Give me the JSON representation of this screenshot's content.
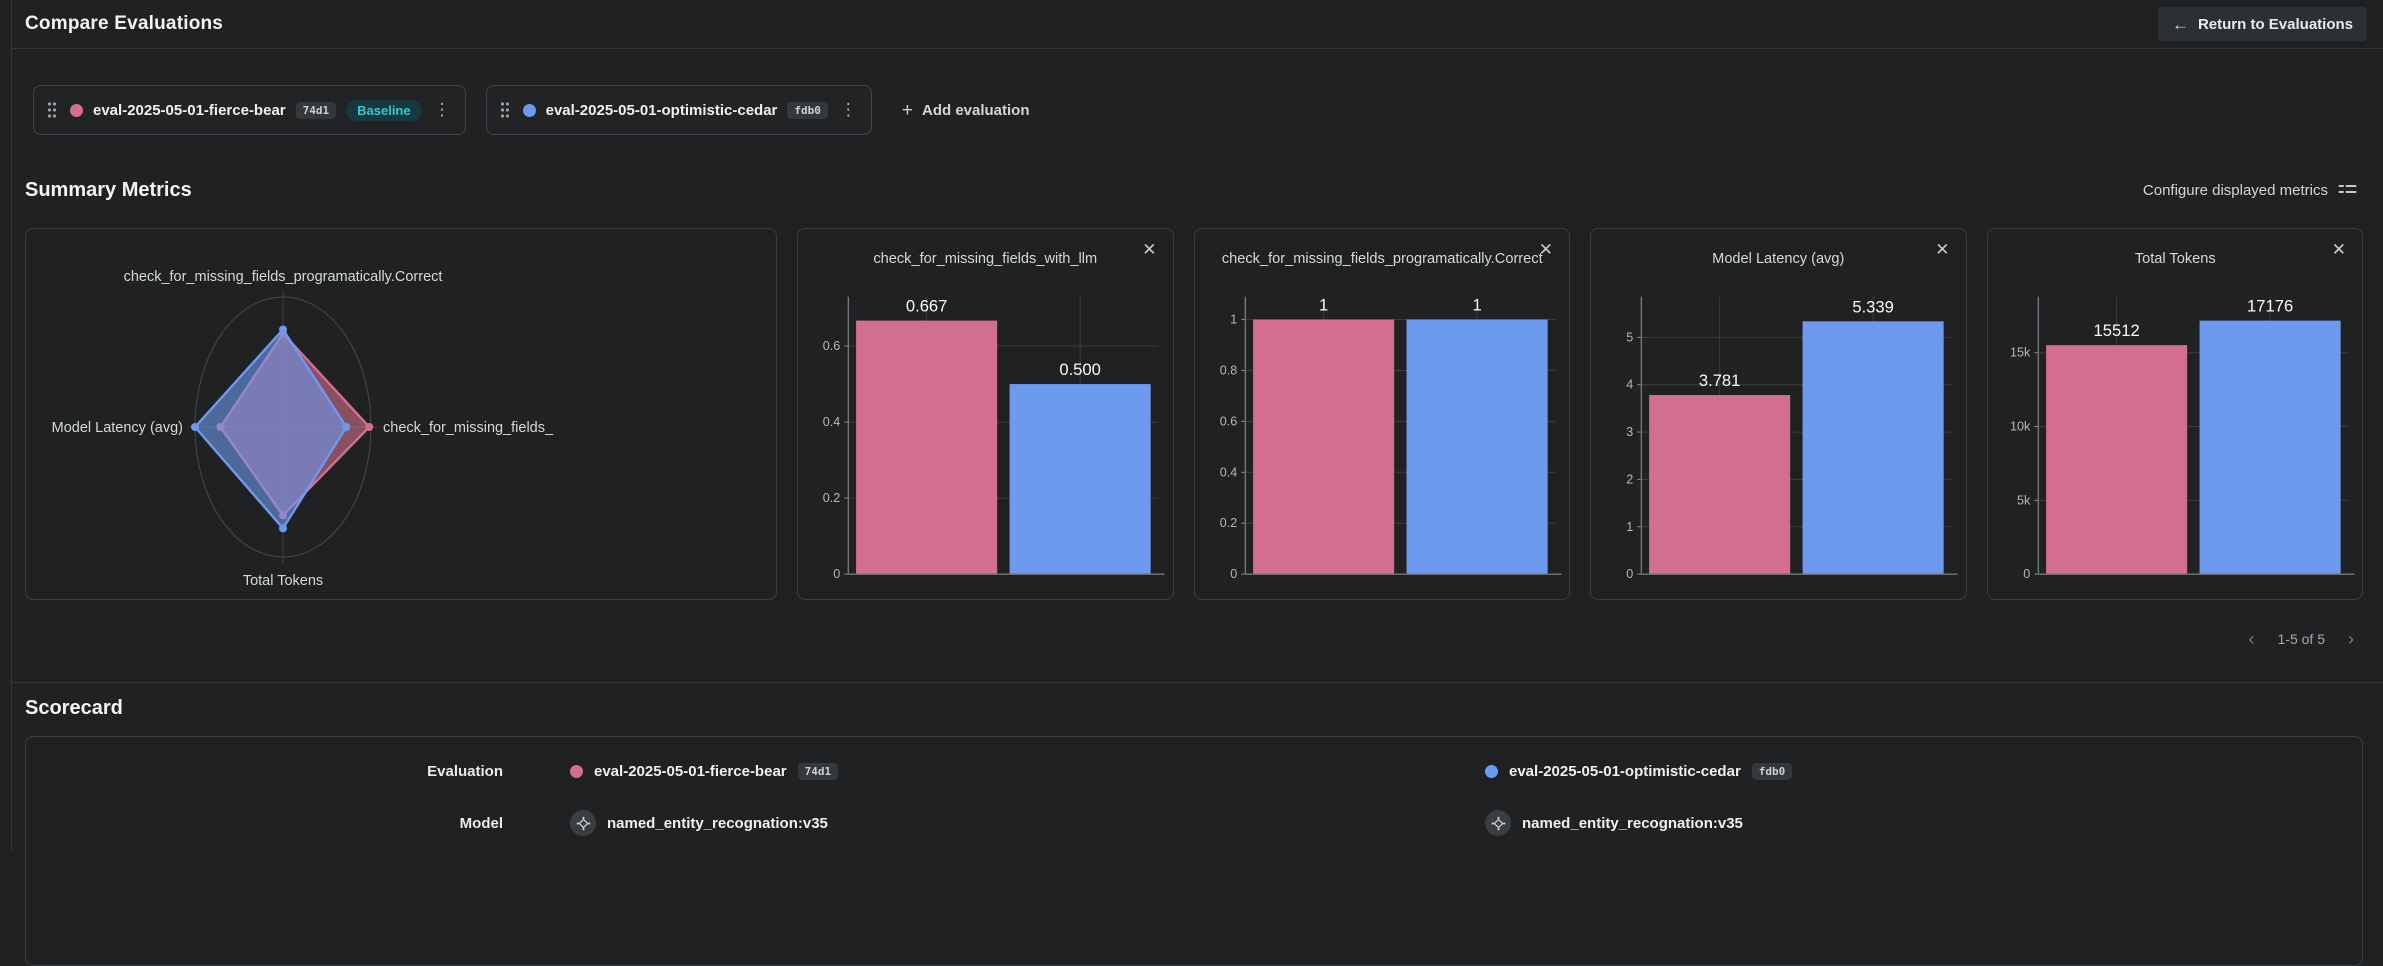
{
  "icons": {
    "close": "✕",
    "plus": "+",
    "back_arrow": "←",
    "kebab": "⋮",
    "chevron_left": "‹",
    "chevron_right": "›"
  },
  "colors": {
    "baseline_series": "#d26e8e",
    "compare_series": "#6d9aee",
    "baseline_badge_bg": "#15393e",
    "baseline_badge_text": "#38c6d0"
  },
  "header": {
    "title": "Compare Evaluations",
    "return_button_label": "Return to Evaluations"
  },
  "toolbar": {
    "evaluations": [
      {
        "name": "eval-2025-05-01-fierce-bear",
        "short_id": "74d1",
        "badge": "Baseline",
        "color": "#d26e8e"
      },
      {
        "name": "eval-2025-05-01-optimistic-cedar",
        "short_id": "fdb0",
        "badge": "",
        "color": "#6d9aee"
      }
    ],
    "add_evaluation_label": "Add evaluation"
  },
  "summary_metrics": {
    "title": "Summary Metrics",
    "configure_label": "Configure displayed metrics",
    "pagination_label": "1-5 of 5"
  },
  "chart_data": [
    {
      "type": "radar",
      "axis_order": "top,right,bottom,left",
      "axes": [
        "check_for_missing_fields_programatically.Correct",
        "check_for_missing_fields_",
        "Total Tokens",
        "Model Latency (avg)"
      ],
      "series": [
        {
          "name": "eval-2025-05-01-fierce-bear",
          "color": "#d26e8e",
          "values_normalized": [
            0.72,
            0.98,
            0.68,
            0.71
          ]
        },
        {
          "name": "eval-2025-05-01-optimistic-cedar",
          "color": "#6d9aee",
          "values_normalized": [
            0.75,
            0.72,
            0.78,
            1.0
          ]
        }
      ]
    },
    {
      "type": "bar",
      "title": "check_for_missing_fields_with_llm",
      "categories": [
        "eval-2025-05-01-fierce-bear",
        "eval-2025-05-01-optimistic-cedar"
      ],
      "values": [
        0.667,
        0.5
      ],
      "value_labels": [
        "0.667",
        "0.500"
      ],
      "yticks": [
        {
          "v": 0,
          "label": "0"
        },
        {
          "v": 0.2,
          "label": "0.2"
        },
        {
          "v": 0.4,
          "label": "0.4"
        },
        {
          "v": 0.6,
          "label": "0.6"
        }
      ],
      "ylim": [
        0,
        0.73
      ]
    },
    {
      "type": "bar",
      "title": "check_for_missing_fields_programatically.Correct",
      "categories": [
        "eval-2025-05-01-fierce-bear",
        "eval-2025-05-01-optimistic-cedar"
      ],
      "values": [
        1,
        1
      ],
      "value_labels": [
        "1",
        "1"
      ],
      "yticks": [
        {
          "v": 0,
          "label": "0"
        },
        {
          "v": 0.2,
          "label": "0.2"
        },
        {
          "v": 0.4,
          "label": "0.4"
        },
        {
          "v": 0.6,
          "label": "0.6"
        },
        {
          "v": 0.8,
          "label": "0.8"
        },
        {
          "v": 1,
          "label": "1"
        }
      ],
      "ylim": [
        0,
        1.09
      ]
    },
    {
      "type": "bar",
      "title": "Model Latency (avg)",
      "categories": [
        "eval-2025-05-01-fierce-bear",
        "eval-2025-05-01-optimistic-cedar"
      ],
      "values": [
        3.781,
        5.339
      ],
      "value_labels": [
        "3.781",
        "5.339"
      ],
      "yticks": [
        {
          "v": 0,
          "label": "0"
        },
        {
          "v": 1,
          "label": "1"
        },
        {
          "v": 2,
          "label": "2"
        },
        {
          "v": 3,
          "label": "3"
        },
        {
          "v": 4,
          "label": "4"
        },
        {
          "v": 5,
          "label": "5"
        }
      ],
      "ylim": [
        0,
        5.86
      ]
    },
    {
      "type": "bar",
      "title": "Total Tokens",
      "categories": [
        "eval-2025-05-01-fierce-bear",
        "eval-2025-05-01-optimistic-cedar"
      ],
      "values": [
        15512,
        17176
      ],
      "value_labels": [
        "15512",
        "17176"
      ],
      "yticks": [
        {
          "v": 0,
          "label": "0"
        },
        {
          "v": 5000,
          "label": "5k"
        },
        {
          "v": 10000,
          "label": "10k"
        },
        {
          "v": 15000,
          "label": "15k"
        }
      ],
      "ylim": [
        0,
        18800
      ]
    }
  ],
  "scorecard": {
    "title": "Scorecard",
    "rows": [
      {
        "label": "Evaluation",
        "values": [
          {
            "name": "eval-2025-05-01-fierce-bear",
            "short_id": "74d1",
            "color": "#d26e8e"
          },
          {
            "name": "eval-2025-05-01-optimistic-cedar",
            "short_id": "fdb0",
            "color": "#6d9aee"
          }
        ]
      },
      {
        "label": "Model",
        "values": [
          {
            "name": "named_entity_recognation:v35"
          },
          {
            "name": "named_entity_recognation:v35"
          }
        ]
      }
    ]
  }
}
